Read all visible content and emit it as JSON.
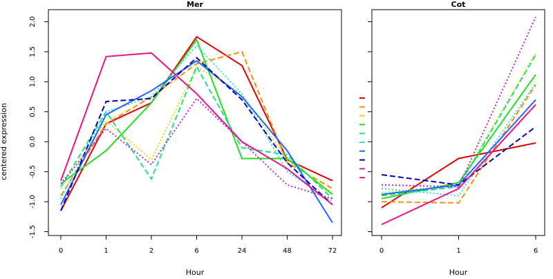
{
  "ylabel": "centered expression",
  "series_colors": [
    "#e00000",
    "#ff8c00",
    "#dddd00",
    "#22dd22",
    "#22dd88",
    "#33dddd",
    "#1a66ff",
    "#0000bb",
    "#bb22dd",
    "#ee1188"
  ],
  "series_dash": [
    "solid",
    "dashed",
    "dotted",
    "solid",
    "dashed",
    "dotted",
    "solid",
    "dashed",
    "dotted",
    "solid"
  ],
  "chart_data": [
    {
      "type": "line",
      "title": "Mer",
      "xlabel": "Hour",
      "ylabel": "centered expression",
      "categories": [
        "0",
        "1",
        "2",
        "6",
        "24",
        "48",
        "72"
      ],
      "yticks": [
        "-1.5",
        "-1.0",
        "-0.5",
        "0.0",
        "0.5",
        "1.0",
        "1.5",
        "2.0"
      ],
      "ylim": [
        -1.5,
        2.1
      ],
      "series": [
        {
          "values": [
            -1.15,
            0.3,
            0.65,
            1.75,
            1.27,
            -0.3,
            -0.65
          ]
        },
        {
          "values": [
            -0.9,
            0.3,
            0.75,
            1.3,
            1.5,
            -0.35,
            -0.78
          ]
        },
        {
          "values": [
            -0.78,
            0.35,
            -0.3,
            1.25,
            0.8,
            -0.3,
            -0.85
          ]
        },
        {
          "values": [
            -0.7,
            -0.15,
            0.65,
            1.7,
            -0.28,
            -0.28,
            -0.88
          ]
        },
        {
          "values": [
            -0.75,
            0.5,
            -0.62,
            1.25,
            -0.1,
            -0.22,
            -0.95
          ]
        },
        {
          "values": [
            -0.95,
            0.5,
            0.75,
            1.6,
            0.8,
            -0.5,
            -1.0
          ]
        },
        {
          "values": [
            -1.05,
            0.45,
            0.85,
            1.35,
            0.75,
            -0.15,
            -1.35
          ]
        },
        {
          "values": [
            -1.15,
            0.67,
            0.72,
            1.4,
            0.7,
            -0.35,
            -1.05
          ]
        },
        {
          "values": [
            -0.7,
            0.22,
            -0.38,
            0.72,
            0.0,
            -0.72,
            -0.95
          ]
        },
        {
          "values": [
            -0.65,
            1.42,
            1.48,
            0.8,
            0.0,
            -0.45,
            -1.05
          ]
        }
      ]
    },
    {
      "type": "line",
      "title": "Cot",
      "xlabel": "Hour",
      "categories": [
        "0",
        "1",
        "6"
      ],
      "ylim": [
        -1.5,
        2.1
      ],
      "series": [
        {
          "values": [
            -1.1,
            -0.28,
            -0.02
          ]
        },
        {
          "values": [
            -1.0,
            -1.02,
            0.95
          ]
        },
        {
          "values": [
            -0.85,
            -0.72,
            1.48
          ]
        },
        {
          "values": [
            -0.95,
            -0.68,
            1.12
          ]
        },
        {
          "values": [
            -0.9,
            -0.75,
            1.45
          ]
        },
        {
          "values": [
            -0.78,
            -0.9,
            0.98
          ]
        },
        {
          "values": [
            -0.88,
            -0.72,
            0.7
          ]
        },
        {
          "values": [
            -0.55,
            -0.72,
            0.25
          ]
        },
        {
          "values": [
            -0.72,
            -0.75,
            2.08
          ]
        },
        {
          "values": [
            -1.38,
            -0.78,
            0.62
          ]
        }
      ]
    }
  ]
}
